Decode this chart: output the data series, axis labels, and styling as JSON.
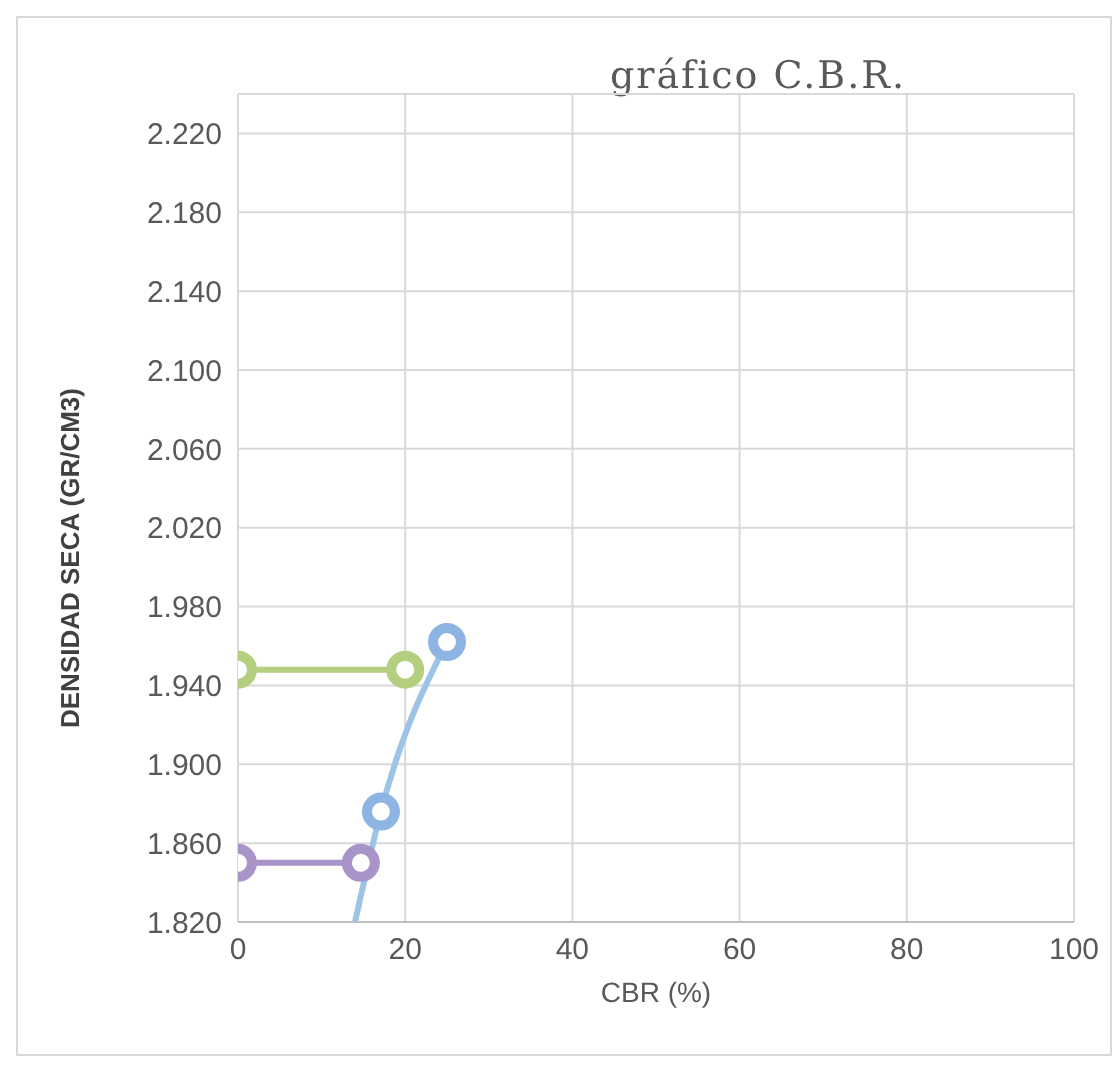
{
  "chart_data": {
    "type": "line",
    "title": "gráfico C.B.R.",
    "xlabel": "CBR  (%)",
    "ylabel": "DENSIDAD SECA (GR/CM3)",
    "xlim": [
      0,
      100
    ],
    "xticks": [
      0,
      20,
      40,
      60,
      80,
      100
    ],
    "ylim": [
      1.82,
      2.24
    ],
    "yticks": [
      {
        "value": 1.82,
        "label": "1.820"
      },
      {
        "value": 1.86,
        "label": "1.860"
      },
      {
        "value": 1.9,
        "label": "1.900"
      },
      {
        "value": 1.94,
        "label": "1.940"
      },
      {
        "value": 1.98,
        "label": "1.980"
      },
      {
        "value": 2.02,
        "label": "2.020"
      },
      {
        "value": 2.06,
        "label": "2.060"
      },
      {
        "value": 2.1,
        "label": "2.100"
      },
      {
        "value": 2.14,
        "label": "2.140"
      },
      {
        "value": 2.18,
        "label": "2.180"
      },
      {
        "value": 2.22,
        "label": "2.220"
      }
    ],
    "grid": true,
    "marker": "circle",
    "line_style": "solid",
    "series": [
      {
        "color": "#9dc3e6",
        "marker": "none",
        "x": [
          14,
          17.1,
          25
        ],
        "values": [
          1.82,
          1.876,
          1.962
        ]
      },
      {
        "type": "scatter",
        "color": "#8eb4e3",
        "x": [
          17.1,
          25
        ],
        "values": [
          1.876,
          1.962
        ]
      },
      {
        "color": "#b3cf7f",
        "x": [
          0,
          20
        ],
        "values": [
          1.948,
          1.948
        ]
      },
      {
        "color": "#a894c8",
        "x": [
          0,
          14.7
        ],
        "values": [
          1.85,
          1.85
        ]
      }
    ]
  }
}
